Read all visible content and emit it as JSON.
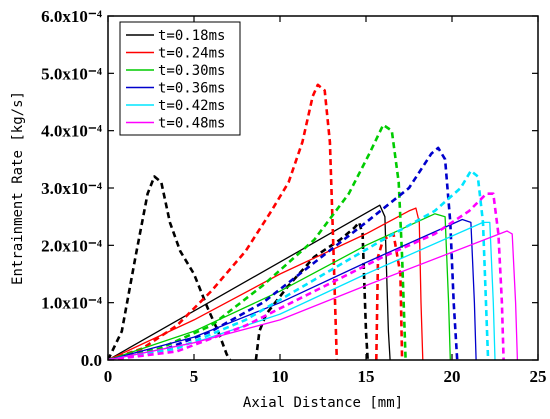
{
  "chart_data": {
    "type": "line",
    "xlabel": "Axial Distance [mm]",
    "ylabel": "Entrainment Rate [kg/s]",
    "xlim": [
      0,
      25
    ],
    "ylim": [
      0,
      0.0006
    ],
    "x_ticks": [
      0,
      5,
      10,
      15,
      20,
      25
    ],
    "x_tick_labels": [
      "0",
      "5",
      "10",
      "15",
      "20",
      "25"
    ],
    "y_ticks": [
      0,
      0.0001,
      0.0002,
      0.0003,
      0.0004,
      0.0005,
      0.0006
    ],
    "y_tick_labels": [
      "0.0",
      "1.0x10⁻⁴",
      "2.0x10⁻⁴",
      "3.0x10⁻⁴",
      "4.0x10⁻⁴",
      "5.0x10⁻⁴",
      "6.0x10⁻⁴"
    ],
    "legend_position": "top-left",
    "series": [
      {
        "name": "t=0.18ms",
        "color": "#000000",
        "solid": [
          [
            0,
            0
          ],
          [
            15.8,
            0.00027
          ],
          [
            16.1,
            0.00025
          ],
          [
            16.3,
            5e-05
          ],
          [
            16.4,
            0
          ]
        ],
        "dashed": [
          [
            0,
            0
          ],
          [
            0.8,
            5e-05
          ],
          [
            1.6,
            0.00018
          ],
          [
            2.3,
            0.00029
          ],
          [
            2.7,
            0.00032
          ],
          [
            3.1,
            0.00031
          ],
          [
            3.6,
            0.00024
          ],
          [
            4.2,
            0.00019
          ],
          [
            5,
            0.00015
          ],
          [
            5.8,
            9e-05
          ],
          [
            6.4,
            5e-05
          ],
          [
            6.9,
            1e-05
          ],
          [
            7.1,
            0
          ]
        ],
        "dashed2": [
          [
            8.6,
            0
          ],
          [
            8.8,
            5e-05
          ],
          [
            9.2,
            8e-05
          ],
          [
            10.5,
            0.00013
          ],
          [
            12,
            0.00018
          ],
          [
            13.5,
            0.00021
          ],
          [
            14.3,
            0.00023
          ],
          [
            14.6,
            0.00024
          ],
          [
            14.8,
            0.00022
          ],
          [
            15,
            5e-05
          ],
          [
            15.1,
            0
          ]
        ]
      },
      {
        "name": "t=0.24ms",
        "color": "#ff0000",
        "solid": [
          [
            0,
            0
          ],
          [
            5,
            7e-05
          ],
          [
            10,
            0.00015
          ],
          [
            15,
            0.00022
          ],
          [
            17.5,
            0.00026
          ],
          [
            17.9,
            0.000265
          ],
          [
            18.1,
            0.00024
          ],
          [
            18.2,
            0.0001
          ],
          [
            18.3,
            0
          ]
        ],
        "dashed": [
          [
            0,
            0
          ],
          [
            2,
            2e-05
          ],
          [
            4,
            6e-05
          ],
          [
            6,
            0.00012
          ],
          [
            8,
            0.00019
          ],
          [
            9.5,
            0.00026
          ],
          [
            10.5,
            0.00031
          ],
          [
            11.3,
            0.00038
          ],
          [
            11.9,
            0.00046
          ],
          [
            12.2,
            0.00048
          ],
          [
            12.6,
            0.00047
          ],
          [
            12.9,
            0.00038
          ],
          [
            13.1,
            0.0002
          ],
          [
            13.3,
            0
          ]
        ],
        "dashed2": [
          [
            15.6,
            0
          ],
          [
            15.7,
            0.00018
          ],
          [
            16,
            0.00021
          ],
          [
            16.6,
            0.00022
          ],
          [
            17,
            0.00015
          ],
          [
            17.1,
            0
          ]
        ]
      },
      {
        "name": "t=0.30ms",
        "color": "#00cc00",
        "solid": [
          [
            0,
            0
          ],
          [
            5,
            5e-05
          ],
          [
            10,
            0.00012
          ],
          [
            15,
            0.0002
          ],
          [
            19,
            0.000255
          ],
          [
            19.6,
            0.00025
          ],
          [
            19.8,
            0.0001
          ],
          [
            19.9,
            0
          ]
        ],
        "dashed": [
          [
            0,
            0
          ],
          [
            3,
            2e-05
          ],
          [
            6,
            6e-05
          ],
          [
            9,
            0.00013
          ],
          [
            12,
            0.00021
          ],
          [
            14,
            0.00029
          ],
          [
            15.2,
            0.00036
          ],
          [
            16,
            0.00041
          ],
          [
            16.5,
            0.0004
          ],
          [
            16.9,
            0.00031
          ],
          [
            17.1,
            0.00018
          ],
          [
            17.3,
            0
          ]
        ]
      },
      {
        "name": "t=0.36ms",
        "color": "#0000cc",
        "solid": [
          [
            0,
            0
          ],
          [
            5,
            4e-05
          ],
          [
            10,
            0.0001
          ],
          [
            15,
            0.00017
          ],
          [
            20.6,
            0.000245
          ],
          [
            21.1,
            0.00024
          ],
          [
            21.3,
            0.0001
          ],
          [
            21.4,
            0
          ]
        ],
        "dashed": [
          [
            0,
            0
          ],
          [
            3,
            1.5e-05
          ],
          [
            6,
            5e-05
          ],
          [
            9,
            0.0001
          ],
          [
            12,
            0.00017
          ],
          [
            15,
            0.00024
          ],
          [
            17.5,
            0.0003
          ],
          [
            18.8,
            0.00036
          ],
          [
            19.2,
            0.00037
          ],
          [
            19.6,
            0.00035
          ],
          [
            19.9,
            0.00024
          ],
          [
            20.1,
            0.0001
          ],
          [
            20.3,
            0
          ]
        ]
      },
      {
        "name": "t=0.42ms",
        "color": "#00e5ff",
        "solid": [
          [
            0,
            0
          ],
          [
            5,
            3e-05
          ],
          [
            10,
            8e-05
          ],
          [
            15,
            0.00015
          ],
          [
            21.8,
            0.00024
          ],
          [
            22.2,
            0.00024
          ],
          [
            22.4,
            0.0001
          ],
          [
            22.5,
            0
          ]
        ],
        "dashed": [
          [
            0,
            0
          ],
          [
            4,
            2e-05
          ],
          [
            8,
            7e-05
          ],
          [
            12,
            0.00014
          ],
          [
            16,
            0.00021
          ],
          [
            19,
            0.00026
          ],
          [
            20.5,
            0.0003
          ],
          [
            21.1,
            0.00033
          ],
          [
            21.5,
            0.00032
          ],
          [
            21.8,
            0.00024
          ],
          [
            22,
            8e-05
          ],
          [
            22.1,
            0
          ]
        ]
      },
      {
        "name": "t=0.48ms",
        "color": "#ff00ff",
        "solid": [
          [
            0,
            0
          ],
          [
            5,
            3e-05
          ],
          [
            10,
            7e-05
          ],
          [
            15,
            0.00013
          ],
          [
            23.2,
            0.000225
          ],
          [
            23.5,
            0.00022
          ],
          [
            23.7,
            0.0001
          ],
          [
            23.8,
            0
          ]
        ],
        "dashed": [
          [
            0,
            0
          ],
          [
            4,
            1.5e-05
          ],
          [
            8,
            6e-05
          ],
          [
            12,
            0.00012
          ],
          [
            16,
            0.00018
          ],
          [
            19,
            0.00022
          ],
          [
            21,
            0.00026
          ],
          [
            22,
            0.00029
          ],
          [
            22.4,
            0.00029
          ],
          [
            22.7,
            0.00022
          ],
          [
            22.9,
            0.0001
          ],
          [
            23,
            0
          ]
        ]
      }
    ]
  }
}
